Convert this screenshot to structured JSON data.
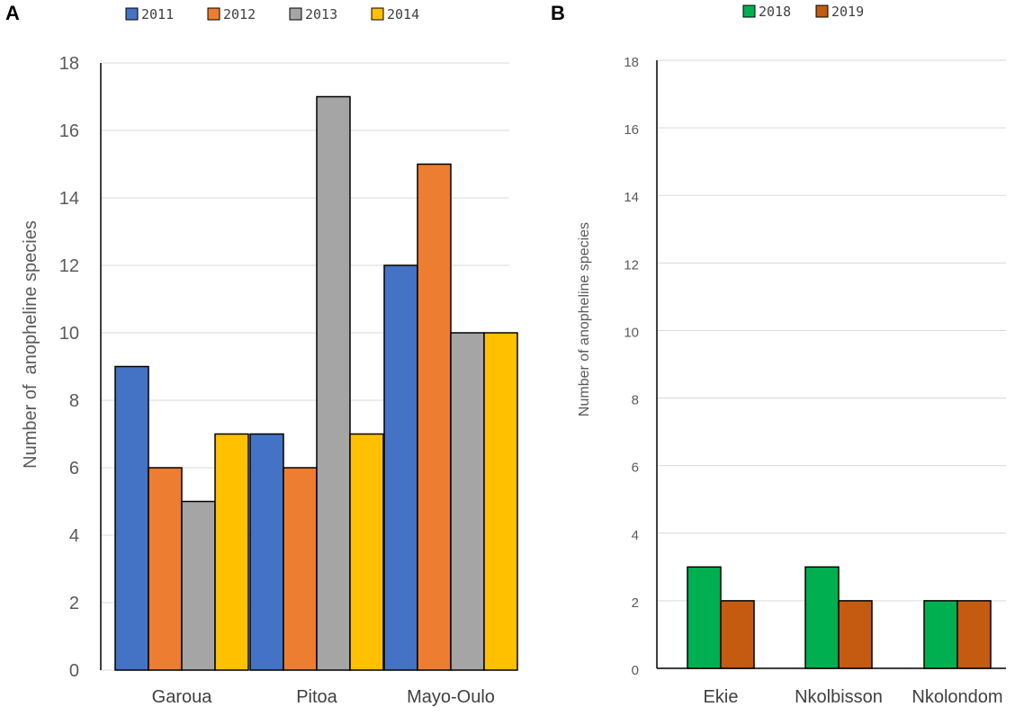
{
  "chart_data": [
    {
      "panel": "A",
      "type": "bar",
      "title": "",
      "xlabel": "",
      "ylabel": "Number of  anopheline species",
      "ylim": [
        0,
        18
      ],
      "yticks": [
        0,
        2,
        4,
        6,
        8,
        10,
        12,
        14,
        16,
        18
      ],
      "grid": true,
      "legend_position": "top",
      "categories": [
        "Garoua",
        "Pitoa",
        "Mayo-Oulo"
      ],
      "series": [
        {
          "name": "2011",
          "color": "#4472C4",
          "values": [
            9,
            7,
            12
          ]
        },
        {
          "name": "2012",
          "color": "#ED7D31",
          "values": [
            6,
            6,
            15
          ]
        },
        {
          "name": "2013",
          "color": "#A5A5A5",
          "values": [
            5,
            17,
            10
          ]
        },
        {
          "name": "2014",
          "color": "#FFC000",
          "values": [
            7,
            7,
            10
          ]
        }
      ]
    },
    {
      "panel": "B",
      "type": "bar",
      "title": "",
      "xlabel": "",
      "ylabel": "Number of anopheline species",
      "ylim": [
        0,
        18
      ],
      "yticks": [
        0,
        2,
        4,
        6,
        8,
        10,
        12,
        14,
        16,
        18
      ],
      "grid": true,
      "legend_position": "top",
      "categories": [
        "Ekie",
        "Nkolbisson",
        "Nkolondom"
      ],
      "series": [
        {
          "name": "2018",
          "color": "#00B050",
          "values": [
            3,
            3,
            2
          ]
        },
        {
          "name": "2019",
          "color": "#C55A11",
          "values": [
            2,
            2,
            2
          ]
        }
      ]
    }
  ]
}
